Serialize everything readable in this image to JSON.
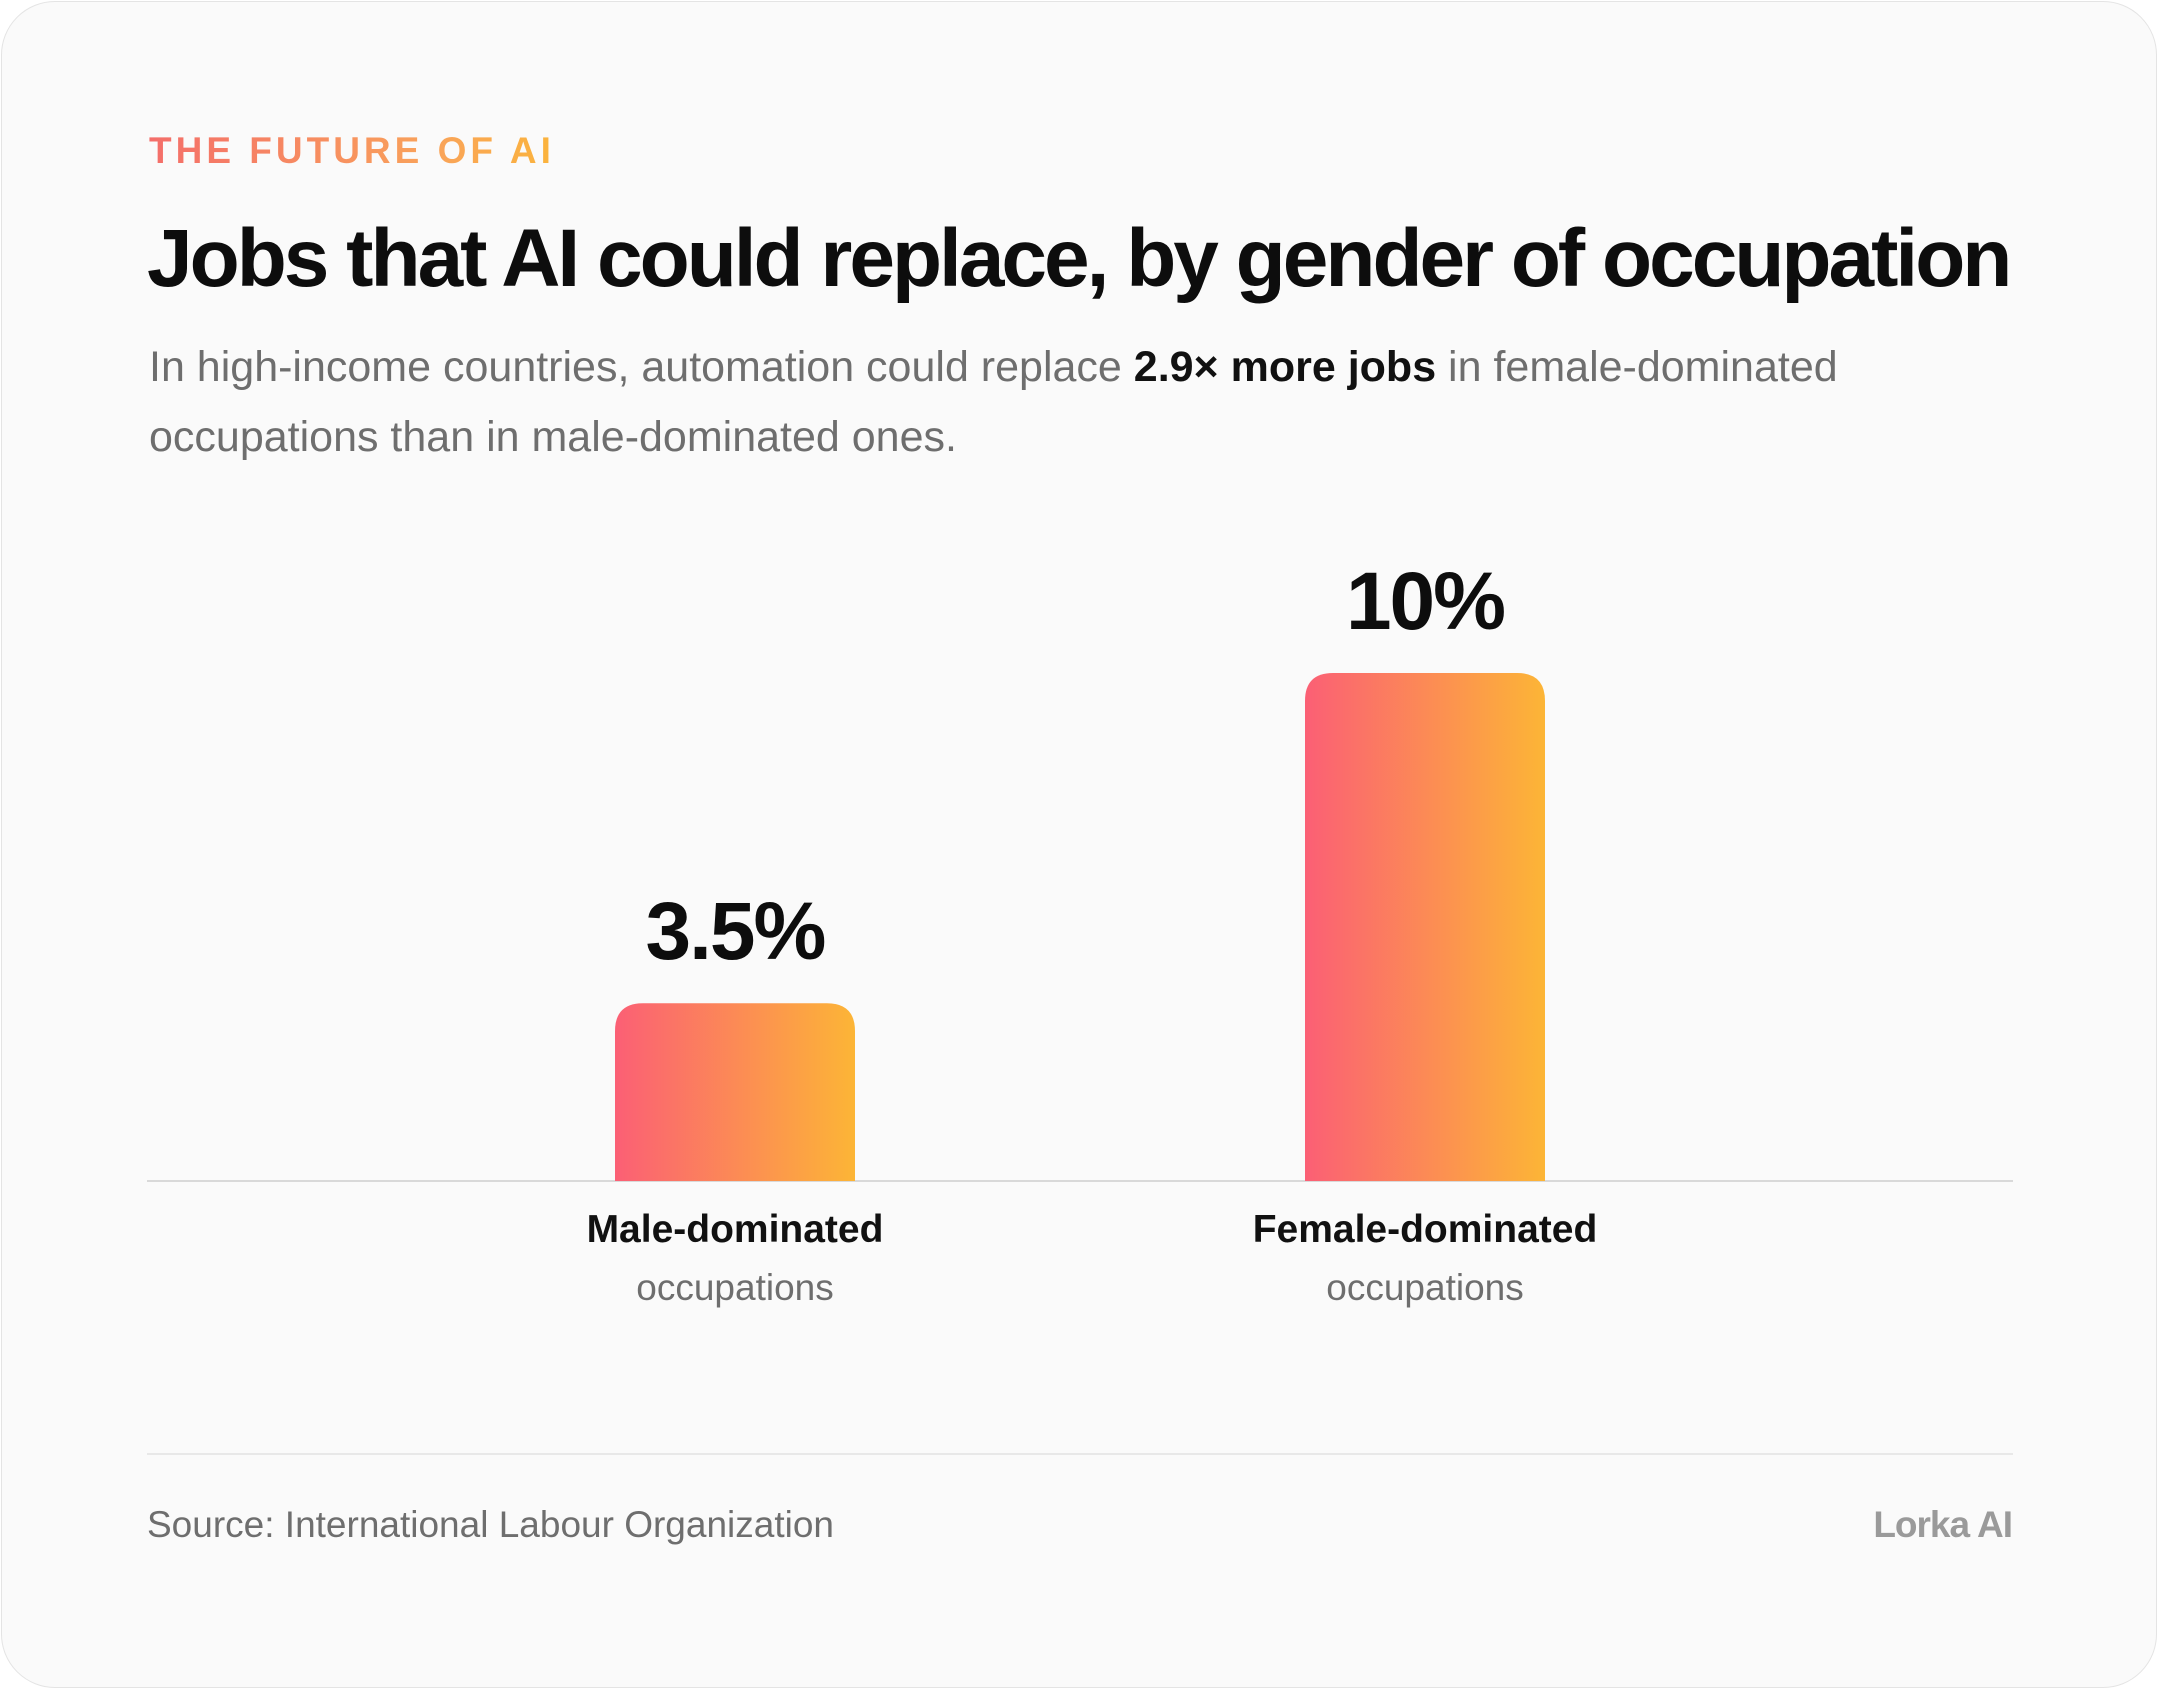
{
  "eyebrow": "THE FUTURE OF AI",
  "title": "Jobs that AI could replace, by gender of occupation",
  "subtitle": {
    "before": "In high-income countries, automation could replace ",
    "highlight": "2.9× more jobs",
    "after": " in female-dominated occupations than in male-dominated ones."
  },
  "colors": {
    "bar_gradient_start": "#fb5f75",
    "bar_gradient_end": "#fcb536",
    "eyebrow_gradient_start": "#f46e6a",
    "eyebrow_gradient_end": "#fbb43c",
    "baseline": "#d9d9d9",
    "value_label": "#0d0d0d"
  },
  "chart_data": {
    "type": "bar",
    "categories": [
      "Male-dominated occupations",
      "Female-dominated occupations"
    ],
    "category_labels": [
      {
        "main": "Male-dominated",
        "sub": "occupations"
      },
      {
        "main": "Female-dominated",
        "sub": "occupations"
      }
    ],
    "values": [
      3.5,
      10
    ],
    "value_labels": [
      "3.5%",
      "10%"
    ],
    "unit": "%",
    "ylim": [
      0,
      10
    ],
    "grid": false,
    "legend": "none"
  },
  "footer": {
    "source": "Source: International Labour Organization",
    "brand": "Lorka AI"
  }
}
